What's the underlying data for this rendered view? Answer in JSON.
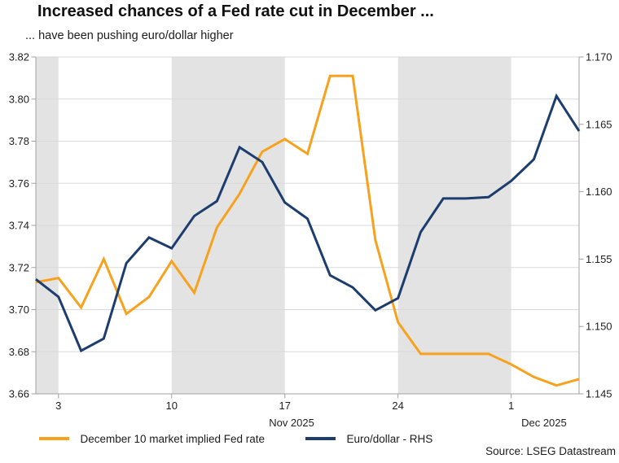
{
  "header": {
    "title": "Increased chances of a Fed rate cut in December ...",
    "subtitle": "... have been pushing euro/dollar higher"
  },
  "footer": {
    "source": "Source: LSEG Datastream"
  },
  "legend": [
    {
      "label": "December 10 market implied Fed rate",
      "color": "#F7A21E"
    },
    {
      "label": "Euro/dollar - RHS",
      "color": "#1C3D6E"
    }
  ],
  "chart_data": {
    "type": "line",
    "title": "Increased chances of a Fed rate cut in December ...",
    "subtitle": "... have been pushing euro/dollar higher",
    "x": [
      "31 Oct",
      "3 Nov",
      "4 Nov",
      "5 Nov",
      "6 Nov",
      "7 Nov",
      "10 Nov",
      "11 Nov",
      "12 Nov",
      "13 Nov",
      "14 Nov",
      "17 Nov",
      "18 Nov",
      "19 Nov",
      "20 Nov",
      "21 Nov",
      "24 Nov",
      "25 Nov",
      "26 Nov",
      "27 Nov",
      "28 Nov",
      "1 Dec",
      "2 Dec",
      "3 Dec",
      "4 Dec"
    ],
    "x_tick_labels": [
      "3",
      "10",
      "17",
      "24",
      "1"
    ],
    "x_tick_indices": [
      1,
      6,
      11,
      16,
      21
    ],
    "month_labels": [
      {
        "label": "Nov 2025",
        "index": 11.3
      },
      {
        "label": "Dec 2025",
        "index": 22.45
      }
    ],
    "left_axis": {
      "min": 3.66,
      "max": 3.82,
      "ticks": [
        3.82,
        3.8,
        3.78,
        3.76,
        3.74,
        3.72,
        3.7,
        3.68,
        3.66
      ]
    },
    "right_axis": {
      "min": 1.145,
      "max": 1.17,
      "ticks": [
        1.17,
        1.165,
        1.16,
        1.155,
        1.15,
        1.145
      ]
    },
    "shaded_bands_x_index": [
      [
        0,
        1
      ],
      [
        6,
        11
      ],
      [
        16,
        21
      ]
    ],
    "band_color": "#e3e3e3",
    "grid": "horizontal-left-ticks",
    "legend_position": "bottom",
    "series": [
      {
        "name": "December 10 market implied Fed rate",
        "axis": "left",
        "color": "#F7A21E",
        "values": [
          3.713,
          3.715,
          3.701,
          3.724,
          3.698,
          3.706,
          3.723,
          3.708,
          3.739,
          3.755,
          3.775,
          3.781,
          3.774,
          3.811,
          3.811,
          3.733,
          3.694,
          3.679,
          3.679,
          3.679,
          3.679,
          3.674,
          3.668,
          3.664,
          3.667
        ]
      },
      {
        "name": "Euro/dollar - RHS",
        "axis": "right",
        "color": "#1C3D6E",
        "values": [
          1.1535,
          1.1522,
          1.1482,
          1.1491,
          1.1547,
          1.1566,
          1.1558,
          1.1582,
          1.1593,
          1.1633,
          1.1622,
          1.1592,
          1.158,
          1.1538,
          1.1529,
          1.1512,
          1.1521,
          1.157,
          1.1595,
          1.1595,
          1.1596,
          1.1608,
          1.1624,
          1.1671,
          1.1645
        ]
      }
    ]
  }
}
